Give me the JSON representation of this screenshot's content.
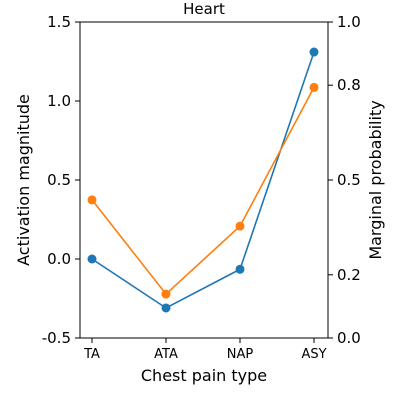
{
  "chart_data": {
    "type": "line",
    "title": "Heart",
    "xlabel": "Chest pain type",
    "ylabel": "Activation magnitude",
    "y2label": "Marginal probability",
    "categories": [
      "TA",
      "ATA",
      "NAP",
      "ASY"
    ],
    "ylim": [
      -0.5,
      1.5
    ],
    "yticks": [
      "-0.5",
      "0.0",
      "0.5",
      "1.0",
      "1.5"
    ],
    "y2lim": [
      0.0,
      1.0
    ],
    "y2ticks": [
      "0.0",
      "0.2",
      "0.5",
      "0.8",
      "1.0"
    ],
    "grid": false,
    "series": [
      {
        "axis": "left",
        "color": "#1f77b4",
        "values": [
          0.0,
          -0.31,
          -0.065,
          1.31
        ]
      },
      {
        "axis": "right",
        "color": "#ff7f0e",
        "values": [
          0.437,
          0.139,
          0.354,
          0.793
        ]
      }
    ]
  }
}
